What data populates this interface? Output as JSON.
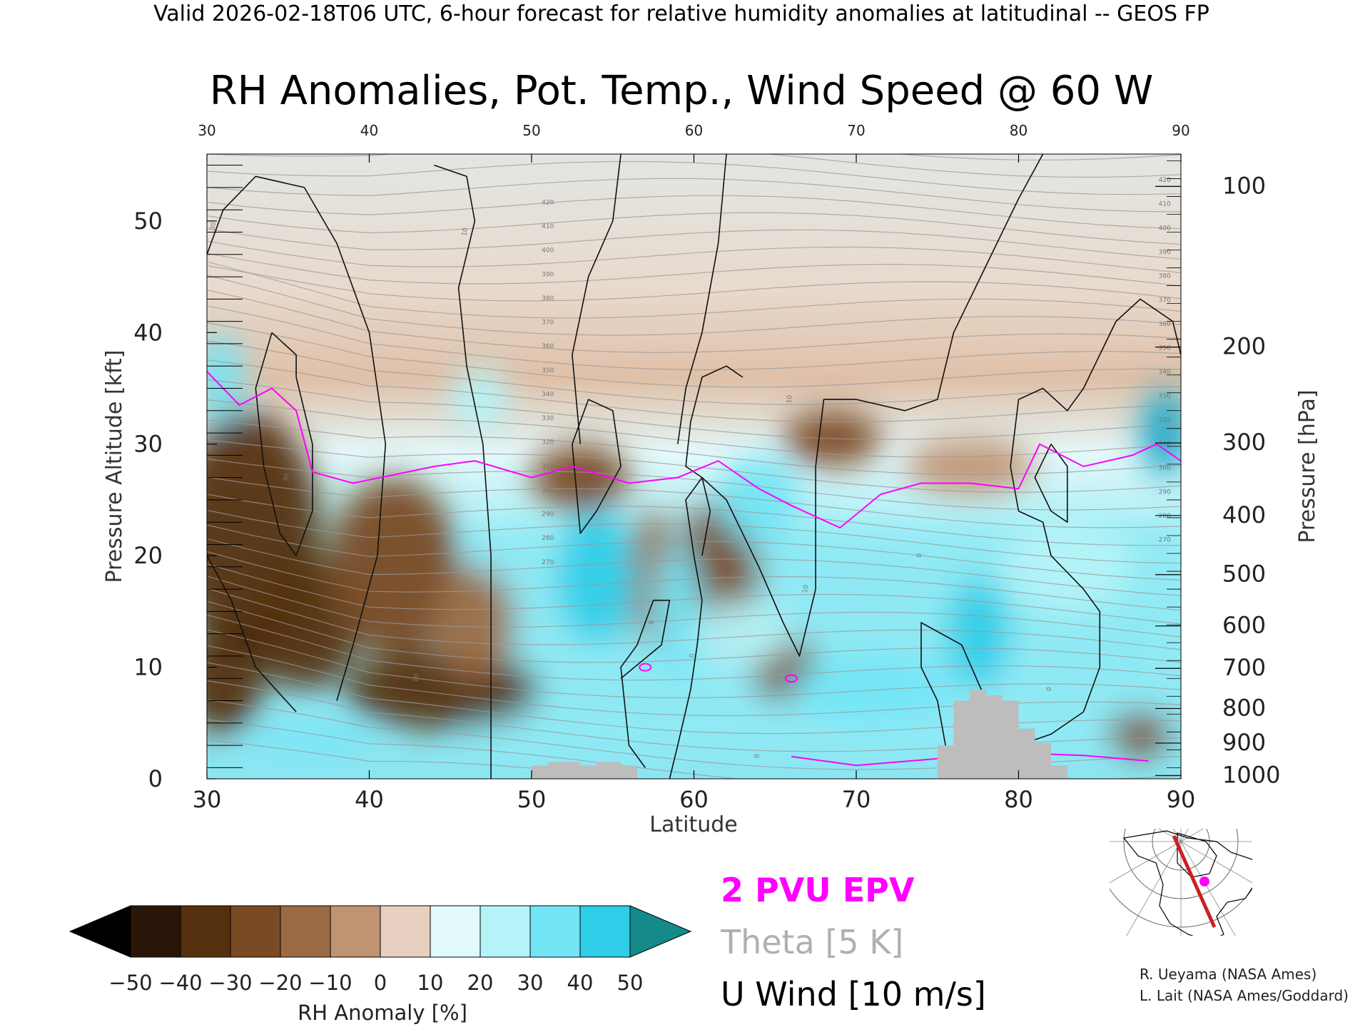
{
  "header": {
    "valid_line": "Valid 2026-02-18T06 UTC, 6-hour forecast for relative humidity anomalies at latitudinal -- GEOS FP",
    "title": "RH Anomalies, Pot. Temp., Wind Speed @ 60 W"
  },
  "chart_data": {
    "type": "heatmap",
    "title": "RH Anomalies, Pot. Temp., Wind Speed @ 60 W",
    "xlabel": "Latitude",
    "ylabel": "Pressure Altitude [kft]",
    "y2label": "Pressure [hPa]",
    "xlim": [
      30,
      90
    ],
    "ylim": [
      0,
      56
    ],
    "x_ticks": [
      "30",
      "40",
      "50",
      "60",
      "70",
      "80",
      "90"
    ],
    "y_ticks": [
      "0",
      "10",
      "20",
      "30",
      "40",
      "50"
    ],
    "pressure_ticks": [
      {
        "label": "1000",
        "kft": 0.3
      },
      {
        "label": "900",
        "kft": 3.2
      },
      {
        "label": "800",
        "kft": 6.3
      },
      {
        "label": "700",
        "kft": 9.9
      },
      {
        "label": "600",
        "kft": 13.7
      },
      {
        "label": "500",
        "kft": 18.3
      },
      {
        "label": "400",
        "kft": 23.6
      },
      {
        "label": "300",
        "kft": 30.1
      },
      {
        "label": "200",
        "kft": 38.7
      },
      {
        "label": "100",
        "kft": 53.1
      }
    ],
    "colorbar": {
      "label": "RH Anomaly [%]",
      "tick_labels": [
        "−50",
        "−40",
        "−30",
        "−20",
        "−10",
        "0",
        "10",
        "20",
        "30",
        "40",
        "50"
      ],
      "colors": [
        "#2a1608",
        "#55300f",
        "#7a4a24",
        "#9c6b43",
        "#c09372",
        "#e8cfbf",
        "#e2fafa",
        "#b5f3f8",
        "#74e5f5",
        "#30cde8",
        "#1ba6c4"
      ],
      "under_color": "#000000",
      "over_color": "#148a8a"
    },
    "legend": [
      {
        "name": "2 PVU EPV",
        "color": "#ff00ff"
      },
      {
        "name": "Theta [5 K]",
        "color": "#b0b0b0"
      },
      {
        "name": "U Wind [10 m/s]",
        "color": "#000000"
      }
    ],
    "theta_labels": [
      "420",
      "410",
      "400",
      "390",
      "380",
      "370",
      "360",
      "350",
      "340",
      "330",
      "320",
      "310",
      "300",
      "290",
      "280",
      "270"
    ],
    "wind_labels": [
      "10",
      "0",
      "30"
    ],
    "rh_blobs": [
      {
        "lat": 32.5,
        "kft": 22.0,
        "dlat": 4.5,
        "dkft": 11.0,
        "value": -45
      },
      {
        "lat": 31.0,
        "kft": 9.0,
        "dlat": 2.5,
        "dkft": 5.0,
        "value": -45
      },
      {
        "lat": 33.5,
        "kft": 13.0,
        "dlat": 1.5,
        "dkft": 2.0,
        "value": -55
      },
      {
        "lat": 36.0,
        "kft": 14.0,
        "dlat": 3.5,
        "dkft": 6.0,
        "value": -38
      },
      {
        "lat": 41.5,
        "kft": 19.0,
        "dlat": 4.0,
        "dkft": 8.0,
        "value": -32
      },
      {
        "lat": 44.5,
        "kft": 8.0,
        "dlat": 6.0,
        "dkft": 3.5,
        "value": -38
      },
      {
        "lat": 46.5,
        "kft": 14.0,
        "dlat": 2.5,
        "dkft": 5.0,
        "value": -22
      },
      {
        "lat": 53.0,
        "kft": 27.0,
        "dlat": 3.0,
        "dkft": 3.0,
        "value": -30
      },
      {
        "lat": 57.5,
        "kft": 18.0,
        "dlat": 1.5,
        "dkft": 6.0,
        "value": -24
      },
      {
        "lat": 61.5,
        "kft": 18.0,
        "dlat": 2.5,
        "dkft": 7.0,
        "value": -30
      },
      {
        "lat": 65.5,
        "kft": 10.0,
        "dlat": 2.0,
        "dkft": 3.0,
        "value": -35
      },
      {
        "lat": 68.5,
        "kft": 30.5,
        "dlat": 3.0,
        "dkft": 2.5,
        "value": -26
      },
      {
        "lat": 77.0,
        "kft": 28.0,
        "dlat": 4.0,
        "dkft": 2.5,
        "value": -15
      },
      {
        "lat": 87.5,
        "kft": 4.0,
        "dlat": 2.0,
        "dkft": 2.0,
        "value": -30
      },
      {
        "lat": 54.0,
        "kft": 18.0,
        "dlat": 2.5,
        "dkft": 6.0,
        "value": 38
      },
      {
        "lat": 59.0,
        "kft": 15.0,
        "dlat": 1.5,
        "dkft": 6.0,
        "value": 30
      },
      {
        "lat": 64.0,
        "kft": 25.0,
        "dlat": 2.5,
        "dkft": 4.0,
        "value": 30
      },
      {
        "lat": 63.0,
        "kft": 13.0,
        "dlat": 3.0,
        "dkft": 3.0,
        "value": 20
      },
      {
        "lat": 77.5,
        "kft": 13.0,
        "dlat": 2.0,
        "dkft": 5.0,
        "value": 44
      },
      {
        "lat": 71.0,
        "kft": 8.0,
        "dlat": 5.0,
        "dkft": 3.0,
        "value": 28
      },
      {
        "lat": 83.0,
        "kft": 19.0,
        "dlat": 4.0,
        "dkft": 4.0,
        "value": 24
      },
      {
        "lat": 89.0,
        "kft": 31.0,
        "dlat": 1.5,
        "dkft": 4.0,
        "value": 45
      },
      {
        "lat": 30.8,
        "kft": 36.0,
        "dlat": 1.5,
        "dkft": 4.0,
        "value": 30
      },
      {
        "lat": 36.5,
        "kft": 3.5,
        "dlat": 4.0,
        "dkft": 1.3,
        "value": 26
      },
      {
        "lat": 46.8,
        "kft": 34.0,
        "dlat": 1.8,
        "dkft": 3.0,
        "value": 22
      }
    ],
    "pvu_2_line": [
      [
        30,
        36.5
      ],
      [
        32,
        33.5
      ],
      [
        34,
        35
      ],
      [
        35.5,
        33
      ],
      [
        36.5,
        27.5
      ],
      [
        39,
        26.5
      ],
      [
        44,
        28
      ],
      [
        46.5,
        28.5
      ],
      [
        50,
        27
      ],
      [
        52.5,
        28
      ],
      [
        56,
        26.5
      ],
      [
        59,
        27
      ],
      [
        61.5,
        28.5
      ],
      [
        64,
        26
      ],
      [
        66,
        24.5
      ],
      [
        69,
        22.5
      ],
      [
        71.5,
        25.5
      ],
      [
        74,
        26.5
      ],
      [
        77,
        26.5
      ],
      [
        80,
        26
      ],
      [
        81.3,
        30
      ],
      [
        84,
        28
      ],
      [
        87,
        29
      ],
      [
        88.5,
        30
      ],
      [
        90,
        28.5
      ]
    ],
    "pvu_2_low": [
      [
        66,
        2
      ],
      [
        70,
        1.2
      ],
      [
        75,
        1.8
      ],
      [
        80,
        2.3
      ],
      [
        84,
        2.1
      ],
      [
        88,
        1.6
      ]
    ],
    "wind_contours": [
      [
        [
          30,
          47
        ],
        [
          31,
          51
        ],
        [
          33,
          54
        ],
        [
          36,
          53
        ],
        [
          38,
          48
        ],
        [
          40,
          40
        ],
        [
          41,
          30
        ],
        [
          40.5,
          20
        ],
        [
          39,
          12
        ],
        [
          38,
          7
        ]
      ],
      [
        [
          34,
          40
        ],
        [
          33,
          35
        ],
        [
          33.5,
          28
        ],
        [
          34.5,
          22
        ],
        [
          35.5,
          20
        ],
        [
          36.5,
          24
        ],
        [
          36.5,
          30
        ],
        [
          35.5,
          36
        ],
        [
          35.5,
          38
        ],
        [
          34,
          40
        ]
      ],
      [
        [
          30,
          20
        ],
        [
          31.5,
          16
        ],
        [
          33,
          10
        ],
        [
          35.5,
          6
        ]
      ],
      [
        [
          44,
          55
        ],
        [
          46,
          54
        ],
        [
          46.5,
          50
        ],
        [
          45.5,
          44
        ],
        [
          46,
          37
        ],
        [
          47,
          30
        ],
        [
          47.5,
          20
        ],
        [
          47.5,
          0
        ]
      ],
      [
        [
          52.5,
          30
        ],
        [
          53.5,
          34
        ],
        [
          55,
          33
        ],
        [
          55.5,
          28
        ],
        [
          54,
          24
        ],
        [
          53,
          22
        ],
        [
          52.5,
          30
        ]
      ],
      [
        [
          55.5,
          9
        ],
        [
          58,
          12
        ],
        [
          58.5,
          16
        ],
        [
          57.5,
          16
        ],
        [
          56.5,
          12
        ],
        [
          55.5,
          10
        ],
        [
          56,
          3
        ],
        [
          57,
          1
        ]
      ],
      [
        [
          60.5,
          20
        ],
        [
          61,
          24
        ],
        [
          60.5,
          27
        ],
        [
          59.5,
          25
        ],
        [
          60,
          20
        ],
        [
          60.5,
          16
        ],
        [
          60.2,
          12
        ],
        [
          59.8,
          8
        ],
        [
          59,
          3
        ],
        [
          58.5,
          0
        ]
      ],
      [
        [
          63,
          36
        ],
        [
          62,
          37
        ],
        [
          60.5,
          36
        ],
        [
          59.8,
          32
        ],
        [
          59.5,
          28
        ],
        [
          60.5,
          27
        ],
        [
          62,
          25
        ],
        [
          64,
          19
        ],
        [
          65.5,
          14
        ],
        [
          66.5,
          11
        ],
        [
          67.5,
          17
        ],
        [
          67.5,
          28
        ],
        [
          68,
          34
        ],
        [
          70,
          34
        ],
        [
          73,
          33
        ],
        [
          75,
          34
        ],
        [
          76,
          40
        ],
        [
          78,
          46
        ],
        [
          80,
          52
        ],
        [
          81.5,
          56
        ]
      ],
      [
        [
          55.5,
          56
        ],
        [
          55,
          50
        ],
        [
          53.5,
          45
        ],
        [
          52.5,
          38
        ],
        [
          53,
          30
        ]
      ],
      [
        [
          62,
          56
        ],
        [
          61.5,
          48
        ],
        [
          60.5,
          40
        ],
        [
          59.5,
          35
        ],
        [
          59,
          30
        ]
      ],
      [
        [
          80,
          34
        ],
        [
          81.5,
          35
        ],
        [
          83,
          33
        ],
        [
          84,
          35
        ],
        [
          86,
          41
        ],
        [
          87.5,
          43
        ],
        [
          89.5,
          41
        ],
        [
          90,
          38
        ]
      ],
      [
        [
          80,
          34
        ],
        [
          79.5,
          28
        ],
        [
          80,
          24
        ],
        [
          81.5,
          23
        ],
        [
          82,
          20
        ],
        [
          84,
          17
        ],
        [
          85,
          15
        ],
        [
          85,
          10
        ],
        [
          84,
          6
        ],
        [
          82,
          4
        ],
        [
          80,
          3
        ],
        [
          79,
          5
        ],
        [
          78,
          7
        ],
        [
          76.5,
          12
        ],
        [
          74,
          14
        ],
        [
          74,
          10
        ],
        [
          75,
          7
        ],
        [
          75.5,
          3
        ],
        [
          76,
          1
        ]
      ],
      [
        [
          82,
          30
        ],
        [
          81,
          27
        ],
        [
          82,
          24
        ],
        [
          83,
          23
        ],
        [
          83,
          28
        ],
        [
          82,
          30
        ]
      ]
    ],
    "topography": [
      [
        50,
        0
      ],
      [
        50,
        1.2
      ],
      [
        51,
        1.2
      ],
      [
        51,
        1.5
      ],
      [
        53,
        1.5
      ],
      [
        53,
        1.2
      ],
      [
        54,
        1.2
      ],
      [
        54,
        1.5
      ],
      [
        55.5,
        1.5
      ],
      [
        55.5,
        1.2
      ],
      [
        56.5,
        1.2
      ],
      [
        56.5,
        0
      ],
      [
        75,
        0
      ],
      [
        75,
        3
      ],
      [
        76,
        3
      ],
      [
        76,
        7
      ],
      [
        77,
        7
      ],
      [
        77,
        8
      ],
      [
        78,
        8
      ],
      [
        78,
        7.5
      ],
      [
        79,
        7.5
      ],
      [
        79,
        7
      ],
      [
        80,
        7
      ],
      [
        80,
        4.5
      ],
      [
        81,
        4.5
      ],
      [
        81,
        3.2
      ],
      [
        82,
        3.2
      ],
      [
        82,
        1.2
      ],
      [
        83,
        1.2
      ],
      [
        83,
        0
      ]
    ]
  },
  "credits": [
    "R. Ueyama (NASA Ames)",
    "L. Lait (NASA Ames/Goddard)"
  ],
  "inset_map": {
    "section_color": "#cc2020",
    "marker_color": "#ff00ff"
  }
}
